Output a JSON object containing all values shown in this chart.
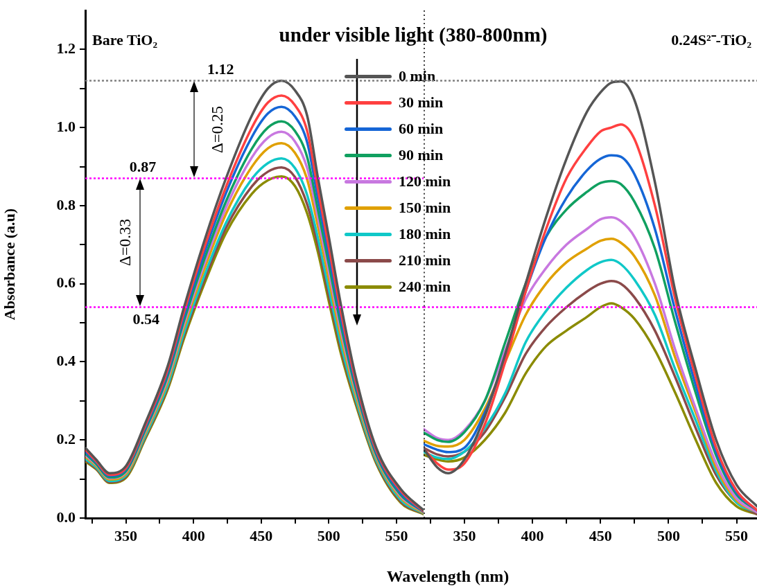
{
  "chart_data": [
    {
      "type": "line",
      "title": "under visible light (380-800nm)",
      "xlabel": "Wavelength (nm)",
      "ylabel": "Absorbance (a.u)",
      "x": [
        320,
        328,
        338,
        350,
        364,
        381,
        393,
        408,
        424,
        443,
        455,
        465,
        475,
        484,
        492,
        500,
        509,
        520,
        535,
        553,
        570
      ],
      "series": [
        {
          "name": "0 min",
          "color": "#555555",
          "values": [
            0.18,
            0.15,
            0.115,
            0.133,
            0.24,
            0.39,
            0.54,
            0.71,
            0.87,
            1.03,
            1.1,
            1.12,
            1.095,
            1.03,
            0.87,
            0.72,
            0.545,
            0.36,
            0.18,
            0.075,
            0.02
          ]
        },
        {
          "name": "30 min",
          "color": "#ff4040",
          "values": [
            0.175,
            0.146,
            0.111,
            0.128,
            0.234,
            0.381,
            0.528,
            0.693,
            0.848,
            0.999,
            1.064,
            1.082,
            1.057,
            0.991,
            0.841,
            0.694,
            0.526,
            0.349,
            0.174,
            0.07,
            0.018
          ]
        },
        {
          "name": "60 min",
          "color": "#1566d6",
          "values": [
            0.17,
            0.143,
            0.108,
            0.125,
            0.229,
            0.374,
            0.518,
            0.68,
            0.832,
            0.975,
            1.036,
            1.053,
            1.028,
            0.962,
            0.818,
            0.675,
            0.511,
            0.341,
            0.169,
            0.065,
            0.017
          ]
        },
        {
          "name": "90 min",
          "color": "#10a060",
          "values": [
            0.165,
            0.139,
            0.104,
            0.12,
            0.223,
            0.365,
            0.506,
            0.663,
            0.811,
            0.945,
            1.0,
            1.016,
            0.991,
            0.924,
            0.789,
            0.65,
            0.492,
            0.33,
            0.163,
            0.06,
            0.016
          ]
        },
        {
          "name": "120 min",
          "color": "#c878e0",
          "values": [
            0.161,
            0.137,
            0.102,
            0.117,
            0.219,
            0.358,
            0.497,
            0.651,
            0.795,
            0.923,
            0.974,
            0.989,
            0.964,
            0.896,
            0.768,
            0.632,
            0.478,
            0.323,
            0.159,
            0.056,
            0.015
          ]
        },
        {
          "name": "150 min",
          "color": "#e0a000",
          "values": [
            0.157,
            0.134,
            0.099,
            0.113,
            0.214,
            0.351,
            0.488,
            0.638,
            0.779,
            0.899,
            0.947,
            0.96,
            0.935,
            0.867,
            0.746,
            0.612,
            0.463,
            0.314,
            0.154,
            0.052,
            0.013
          ]
        },
        {
          "name": "180 min",
          "color": "#10c8c8",
          "values": [
            0.152,
            0.13,
            0.095,
            0.109,
            0.208,
            0.341,
            0.475,
            0.621,
            0.756,
            0.868,
            0.909,
            0.921,
            0.896,
            0.827,
            0.716,
            0.586,
            0.443,
            0.303,
            0.148,
            0.047,
            0.012
          ]
        },
        {
          "name": "210 min",
          "color": "#8b4a4a",
          "values": [
            0.148,
            0.127,
            0.092,
            0.106,
            0.204,
            0.336,
            0.468,
            0.61,
            0.743,
            0.849,
            0.887,
            0.898,
            0.873,
            0.803,
            0.698,
            0.57,
            0.432,
            0.297,
            0.144,
            0.043,
            0.011
          ]
        },
        {
          "name": "240 min",
          "color": "#8b8b00",
          "values": [
            0.145,
            0.125,
            0.09,
            0.103,
            0.2,
            0.33,
            0.46,
            0.6,
            0.73,
            0.83,
            0.865,
            0.875,
            0.85,
            0.78,
            0.68,
            0.555,
            0.42,
            0.29,
            0.14,
            0.04,
            0.01
          ]
        }
      ],
      "xlim": [
        320,
        570
      ],
      "xticks": [
        {
          "value": 325,
          "label": null
        },
        350,
        {
          "value": 375,
          "label": null
        },
        400,
        {
          "value": 425,
          "label": null
        },
        450,
        {
          "value": 475,
          "label": null
        },
        500,
        {
          "value": 525,
          "label": null
        },
        550
      ],
      "ylim": [
        0,
        1.3
      ],
      "yticks": [
        {
          "value": 0,
          "label": "0.0"
        },
        {
          "value": 0.1,
          "label": null
        },
        0.2,
        {
          "value": 0.3,
          "label": null
        },
        0.4,
        {
          "value": 0.5,
          "label": null
        },
        0.6,
        {
          "value": 0.7,
          "label": null
        },
        0.8,
        {
          "value": 0.9,
          "label": null
        },
        {
          "value": 1,
          "label": "1.0"
        },
        {
          "value": 1.1,
          "label": null
        },
        1.2
      ],
      "legend": "top right",
      "ref_lines": [
        {
          "axis": "y",
          "value": 1.12,
          "label": "1.12",
          "color": "#808080",
          "line_style": "dotted"
        },
        {
          "axis": "y",
          "value": 0.87,
          "label": "0.87",
          "color": "#ff00ff",
          "line_style": "dotted"
        },
        {
          "axis": "y",
          "value": 0.54,
          "label": "0.54",
          "color": "#ff00ff",
          "line_style": "dotted"
        }
      ],
      "annotations": [
        "Bare TiO₂",
        "Δ=0.25",
        "Δ=0.33"
      ]
    },
    {
      "type": "line",
      "x": [
        320,
        330,
        338,
        350,
        365,
        380,
        395,
        410,
        425,
        440,
        450,
        458,
        465,
        475,
        490,
        505,
        520,
        535,
        550,
        565
      ],
      "series": [
        {
          "color": "#555555",
          "values": [
            0.178,
            0.13,
            0.115,
            0.15,
            0.26,
            0.42,
            0.6,
            0.77,
            0.92,
            1.04,
            1.09,
            1.115,
            1.118,
            1.07,
            0.86,
            0.58,
            0.38,
            0.2,
            0.085,
            0.03
          ]
        },
        {
          "color": "#ff4040",
          "values": [
            0.178,
            0.14,
            0.124,
            0.14,
            0.24,
            0.4,
            0.58,
            0.74,
            0.87,
            0.95,
            0.99,
            1.0,
            1.008,
            0.97,
            0.8,
            0.56,
            0.36,
            0.18,
            0.07,
            0.02
          ]
        },
        {
          "color": "#1566d6",
          "values": [
            0.189,
            0.175,
            0.169,
            0.18,
            0.27,
            0.41,
            0.58,
            0.72,
            0.82,
            0.89,
            0.92,
            0.929,
            0.925,
            0.88,
            0.74,
            0.53,
            0.34,
            0.17,
            0.065,
            0.02
          ]
        },
        {
          "color": "#10a060",
          "values": [
            0.219,
            0.2,
            0.195,
            0.22,
            0.3,
            0.45,
            0.6,
            0.72,
            0.79,
            0.835,
            0.858,
            0.863,
            0.855,
            0.81,
            0.69,
            0.5,
            0.32,
            0.16,
            0.06,
            0.02
          ]
        },
        {
          "color": "#c878e0",
          "values": [
            0.228,
            0.205,
            0.2,
            0.225,
            0.3,
            0.43,
            0.56,
            0.64,
            0.7,
            0.74,
            0.765,
            0.77,
            0.76,
            0.72,
            0.6,
            0.43,
            0.28,
            0.14,
            0.05,
            0.015
          ]
        },
        {
          "color": "#e0a000",
          "values": [
            0.198,
            0.185,
            0.183,
            0.2,
            0.28,
            0.4,
            0.52,
            0.6,
            0.655,
            0.69,
            0.71,
            0.715,
            0.705,
            0.67,
            0.57,
            0.41,
            0.27,
            0.13,
            0.045,
            0.015
          ]
        },
        {
          "color": "#10c8c8",
          "values": [
            0.169,
            0.155,
            0.151,
            0.17,
            0.23,
            0.32,
            0.45,
            0.53,
            0.59,
            0.635,
            0.655,
            0.661,
            0.65,
            0.61,
            0.52,
            0.38,
            0.25,
            0.12,
            0.04,
            0.015
          ]
        },
        {
          "color": "#8b4a4a",
          "values": [
            0.18,
            0.163,
            0.158,
            0.17,
            0.22,
            0.31,
            0.42,
            0.49,
            0.54,
            0.58,
            0.6,
            0.607,
            0.6,
            0.565,
            0.48,
            0.36,
            0.23,
            0.11,
            0.04,
            0.01
          ]
        },
        {
          "color": "#8b8b00",
          "values": [
            0.162,
            0.15,
            0.145,
            0.155,
            0.2,
            0.27,
            0.37,
            0.44,
            0.48,
            0.515,
            0.54,
            0.55,
            0.54,
            0.51,
            0.43,
            0.32,
            0.2,
            0.09,
            0.03,
            0.01
          ]
        }
      ],
      "xlim": [
        320,
        565
      ],
      "xticks": [
        {
          "value": 325,
          "label": null
        },
        350,
        {
          "value": 375,
          "label": null
        },
        400,
        {
          "value": 425,
          "label": null
        },
        450,
        {
          "value": 475,
          "label": null
        },
        500,
        {
          "value": 525,
          "label": null
        },
        550
      ],
      "ylim": [
        0,
        1.3
      ],
      "tick_labels": "x",
      "ref_lines": [
        {
          "axis": "y",
          "value": 1.12,
          "color": "#808080",
          "line_style": "dotted"
        },
        {
          "axis": "y",
          "value": 0.54,
          "color": "#ff00ff",
          "line_style": "dotted"
        }
      ],
      "annotations": [
        "0.24S²⁻-TiO₂"
      ]
    }
  ]
}
